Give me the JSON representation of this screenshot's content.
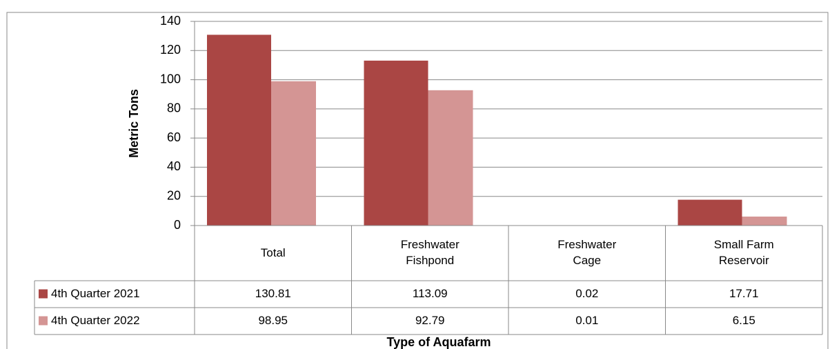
{
  "chart_data": {
    "type": "bar",
    "categories": [
      "Total",
      "Freshwater Fishpond",
      "Freshwater Cage",
      "Small Farm Reservoir"
    ],
    "series": [
      {
        "name": "4th Quarter 2021",
        "color": "#aa4644",
        "values": [
          130.81,
          113.09,
          0.02,
          17.71
        ]
      },
      {
        "name": "4th Quarter 2022",
        "color": "#d49594",
        "values": [
          98.95,
          92.79,
          0.01,
          6.15
        ]
      }
    ],
    "ylim": [
      0,
      140
    ],
    "yticks": [
      0,
      20,
      40,
      60,
      80,
      100,
      120,
      140
    ],
    "grid": true,
    "x_label": "Type of Aquafarm",
    "y_label": "Metric Tons"
  }
}
